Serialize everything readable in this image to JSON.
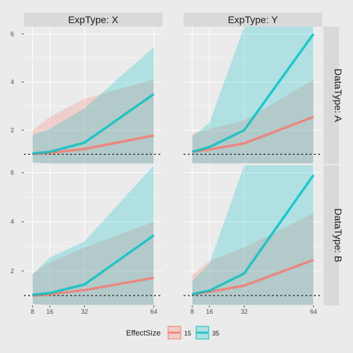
{
  "chart_data": {
    "type": "line",
    "x": [
      8,
      16,
      32,
      64
    ],
    "x_ticks": [
      "8",
      "16",
      "32",
      "64"
    ],
    "y_ticks": [
      "2",
      "4",
      "6"
    ],
    "ylim": [
      0.6,
      6.3
    ],
    "reference_line": 1,
    "column_facet_labels": [
      "ExpType: X",
      "ExpType: Y"
    ],
    "row_facet_labels": [
      "DataType: A",
      "DataType: B"
    ],
    "legend": {
      "title": "EffectSize",
      "items": [
        {
          "label": "15",
          "color": "#F8766D"
        },
        {
          "label": "35",
          "color": "#00BFC4"
        }
      ]
    },
    "panels": [
      {
        "row": 0,
        "col": 0,
        "series": [
          {
            "name": "15",
            "values": [
              1.02,
              1.06,
              1.22,
              1.78
            ],
            "lower": [
              0.65,
              0.62,
              0.62,
              0.62
            ],
            "upper": [
              2.0,
              2.55,
              3.3,
              4.1
            ]
          },
          {
            "name": "35",
            "values": [
              1.03,
              1.1,
              1.48,
              3.5
            ],
            "lower": [
              0.65,
              0.62,
              0.62,
              0.62
            ],
            "upper": [
              1.8,
              2.05,
              2.9,
              5.45
            ]
          }
        ]
      },
      {
        "row": 0,
        "col": 1,
        "series": [
          {
            "name": "15",
            "values": [
              1.1,
              1.2,
              1.45,
              2.55
            ],
            "lower": [
              0.65,
              0.62,
              0.62,
              0.62
            ],
            "upper": [
              1.85,
              2.05,
              2.4,
              4.1
            ]
          },
          {
            "name": "35",
            "values": [
              1.1,
              1.3,
              2.0,
              6.0
            ],
            "lower": [
              0.62,
              0.62,
              0.62,
              0.62
            ],
            "upper": [
              1.75,
              2.3,
              6.3,
              6.3
            ]
          }
        ]
      },
      {
        "row": 1,
        "col": 0,
        "series": [
          {
            "name": "15",
            "values": [
              1.0,
              1.05,
              1.22,
              1.72
            ],
            "lower": [
              0.65,
              0.62,
              0.62,
              0.62
            ],
            "upper": [
              1.9,
              2.35,
              2.95,
              4.0
            ]
          },
          {
            "name": "35",
            "values": [
              1.03,
              1.1,
              1.45,
              3.45
            ],
            "lower": [
              0.65,
              0.62,
              0.62,
              0.62
            ],
            "upper": [
              1.85,
              2.55,
              3.2,
              6.3
            ]
          }
        ]
      },
      {
        "row": 1,
        "col": 1,
        "series": [
          {
            "name": "15",
            "values": [
              1.05,
              1.15,
              1.4,
              2.45
            ],
            "lower": [
              0.65,
              0.62,
              0.62,
              0.62
            ],
            "upper": [
              1.85,
              2.4,
              2.95,
              4.35
            ]
          },
          {
            "name": "35",
            "values": [
              1.05,
              1.2,
              1.9,
              5.9
            ],
            "lower": [
              0.62,
              0.62,
              0.62,
              0.62
            ],
            "upper": [
              1.6,
              2.3,
              6.3,
              6.3
            ]
          }
        ]
      }
    ]
  }
}
